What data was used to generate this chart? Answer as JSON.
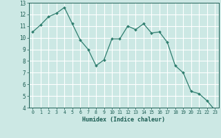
{
  "x": [
    0,
    1,
    2,
    3,
    4,
    5,
    6,
    7,
    8,
    9,
    10,
    11,
    12,
    13,
    14,
    15,
    16,
    17,
    18,
    19,
    20,
    21,
    22,
    23
  ],
  "y": [
    10.5,
    11.1,
    11.8,
    12.1,
    12.6,
    11.2,
    9.8,
    9.0,
    7.6,
    8.1,
    9.9,
    9.9,
    11.0,
    10.7,
    11.2,
    10.4,
    10.5,
    9.6,
    7.6,
    7.0,
    5.4,
    5.2,
    4.6,
    3.8
  ],
  "xlabel": "Humidex (Indice chaleur)",
  "ylim": [
    4,
    13
  ],
  "xlim": [
    -0.5,
    23.5
  ],
  "yticks": [
    4,
    5,
    6,
    7,
    8,
    9,
    10,
    11,
    12,
    13
  ],
  "xticks": [
    0,
    1,
    2,
    3,
    4,
    5,
    6,
    7,
    8,
    9,
    10,
    11,
    12,
    13,
    14,
    15,
    16,
    17,
    18,
    19,
    20,
    21,
    22,
    23
  ],
  "line_color": "#2e7d6e",
  "marker_color": "#2e7d6e",
  "bg_color": "#cce8e4",
  "grid_color": "#ffffff",
  "tick_color": "#1a5c52",
  "label_color": "#1a5c52"
}
